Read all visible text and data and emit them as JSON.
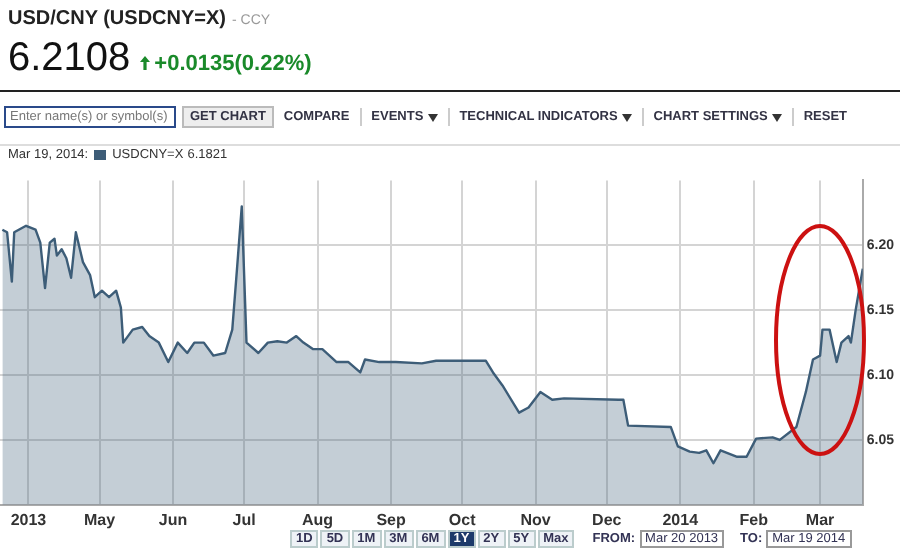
{
  "chart_data": {
    "type": "area",
    "title": "USD/CNY (USDCNY=X)",
    "subtitle": "- CCY",
    "annotations": [
      "6.2108",
      "+0.0135(0.22%)",
      "Enter name(s) or symbol(s)",
      "GET CHART",
      "COMPARE",
      "EVENTS",
      "TECHNICAL INDICATORS",
      "CHART SETTINGS",
      "RESET",
      "Mar 19, 2014:",
      "6.1821",
      "1D",
      "5D",
      "1M",
      "3M",
      "6M",
      "1Y",
      "2Y",
      "5Y",
      "Max",
      "FROM:",
      "Mar 20 2013",
      "TO:",
      "Mar 19 2014"
    ],
    "series": [
      {
        "name": "USDCNY=X",
        "color": "#3d5d78",
        "x": [
          "2013-03-21",
          "2013-03-23",
          "2013-03-25",
          "2013-03-26",
          "2013-03-31",
          "2013-04-04",
          "2013-04-06",
          "2013-04-08",
          "2013-04-10",
          "2013-04-12",
          "2013-04-13",
          "2013-04-15",
          "2013-04-17",
          "2013-04-19",
          "2013-04-21",
          "2013-04-24",
          "2013-04-27",
          "2013-04-29",
          "2013-05-02",
          "2013-05-05",
          "2013-05-08",
          "2013-05-10",
          "2013-05-11",
          "2013-05-15",
          "2013-05-19",
          "2013-05-22",
          "2013-05-26",
          "2013-05-30",
          "2013-06-03",
          "2013-06-07",
          "2013-06-10",
          "2013-06-14",
          "2013-06-18",
          "2013-06-23",
          "2013-06-26",
          "2013-06-28",
          "2013-06-30",
          "2013-07-02",
          "2013-07-07",
          "2013-07-11",
          "2013-07-15",
          "2013-07-19",
          "2013-07-23",
          "2013-07-26",
          "2013-07-30",
          "2013-08-03",
          "2013-08-09",
          "2013-08-14",
          "2013-08-19",
          "2013-08-21",
          "2013-08-27",
          "2013-09-03",
          "2013-09-14",
          "2013-09-20",
          "2013-09-26",
          "2013-10-11",
          "2013-10-14",
          "2013-10-18",
          "2013-10-25",
          "2013-10-29",
          "2013-11-03",
          "2013-11-08",
          "2013-11-13",
          "2013-12-06",
          "2013-12-08",
          "2013-12-10",
          "2013-12-28",
          "2013-12-31",
          "2014-01-05",
          "2014-01-09",
          "2014-01-12",
          "2014-01-15",
          "2014-01-18",
          "2014-01-25",
          "2014-01-29",
          "2014-02-02",
          "2014-02-09",
          "2014-02-12",
          "2014-02-19",
          "2014-02-23",
          "2014-02-26",
          "2014-03-01",
          "2014-03-02",
          "2014-03-05",
          "2014-03-08",
          "2014-03-10",
          "2014-03-13",
          "2014-03-14",
          "2014-03-16",
          "2014-03-19"
        ],
        "values": [
          6.212,
          6.21,
          6.172,
          6.21,
          6.215,
          6.212,
          6.202,
          6.167,
          6.202,
          6.205,
          6.192,
          6.197,
          6.19,
          6.175,
          6.21,
          6.187,
          6.177,
          6.16,
          6.165,
          6.16,
          6.165,
          6.152,
          6.125,
          6.135,
          6.137,
          6.13,
          6.125,
          6.11,
          6.125,
          6.117,
          6.125,
          6.125,
          6.115,
          6.117,
          6.135,
          6.182,
          6.23,
          6.125,
          6.117,
          6.125,
          6.126,
          6.125,
          6.13,
          6.125,
          6.12,
          6.12,
          6.11,
          6.11,
          6.102,
          6.112,
          6.11,
          6.11,
          6.109,
          6.111,
          6.111,
          6.111,
          6.102,
          6.092,
          6.071,
          6.075,
          6.087,
          6.081,
          6.082,
          6.081,
          6.081,
          6.061,
          6.06,
          6.045,
          6.041,
          6.04,
          6.042,
          6.032,
          6.042,
          6.037,
          6.037,
          6.051,
          6.052,
          6.05,
          6.06,
          6.087,
          6.112,
          6.115,
          6.135,
          6.135,
          6.11,
          6.125,
          6.13,
          6.125,
          6.15,
          6.182
        ]
      }
    ],
    "xlim": [
      "2013-03-20",
      "2014-03-19"
    ],
    "xticks": [
      {
        "value": "2013-04-01",
        "label": "2013"
      },
      {
        "value": "2013-05-01",
        "label": "May"
      },
      {
        "value": "2013-06-01",
        "label": "Jun"
      },
      {
        "value": "2013-07-01",
        "label": "Jul"
      },
      {
        "value": "2013-08-01",
        "label": "Aug"
      },
      {
        "value": "2013-09-01",
        "label": "Sep"
      },
      {
        "value": "2013-10-01",
        "label": "Oct"
      },
      {
        "value": "2013-11-01",
        "label": "Nov"
      },
      {
        "value": "2013-12-01",
        "label": "Dec"
      },
      {
        "value": "2014-01-01",
        "label": "2014"
      },
      {
        "value": "2014-02-01",
        "label": "Feb"
      },
      {
        "value": "2014-03-01",
        "label": "Mar"
      }
    ],
    "ylim": [
      6.0,
      6.25
    ],
    "yticks": [
      6.05,
      {
        "value": 6.1,
        "label": "6.10"
      },
      6.15,
      {
        "value": 6.2,
        "label": "6.20"
      }
    ],
    "grid": true,
    "legend": "top left"
  }
}
